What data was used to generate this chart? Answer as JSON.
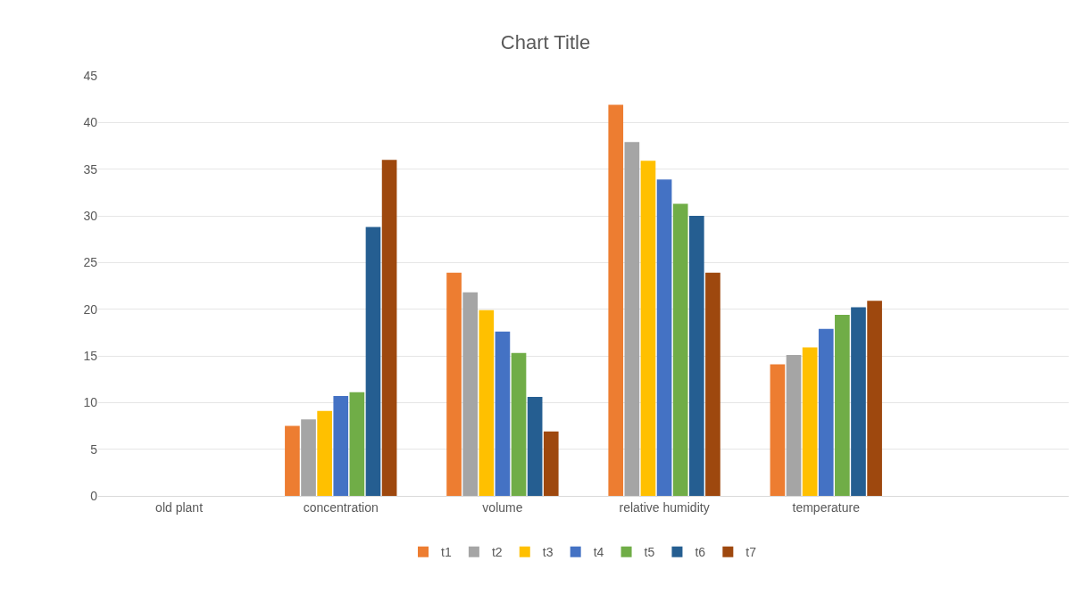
{
  "chart_data": {
    "type": "bar",
    "title": "Chart Title",
    "categories": [
      "old plant",
      "concentration",
      "volume",
      "relative humidity",
      "temperature",
      null
    ],
    "series": [
      {
        "name": "t1",
        "color": "#ed7d31",
        "values": [
          null,
          7.5,
          23.9,
          41.9,
          14.1,
          null
        ]
      },
      {
        "name": "t2",
        "color": "#a5a5a5",
        "values": [
          null,
          8.2,
          21.8,
          37.9,
          15.1,
          null
        ]
      },
      {
        "name": "t3",
        "color": "#ffc000",
        "values": [
          null,
          9.1,
          19.9,
          35.9,
          15.9,
          null
        ]
      },
      {
        "name": "t4",
        "color": "#4472c4",
        "values": [
          null,
          10.7,
          17.6,
          33.9,
          17.9,
          null
        ]
      },
      {
        "name": "t5",
        "color": "#70ad47",
        "values": [
          null,
          11.1,
          15.3,
          31.3,
          19.4,
          null
        ]
      },
      {
        "name": "t6",
        "color": "#255e91",
        "values": [
          null,
          28.8,
          10.6,
          30.0,
          20.2,
          null
        ]
      },
      {
        "name": "t7",
        "color": "#9e480e",
        "values": [
          null,
          36.0,
          6.9,
          23.9,
          20.9,
          null
        ]
      }
    ],
    "ylim": [
      0,
      45
    ],
    "yticks": [
      0,
      5,
      10,
      15,
      20,
      25,
      30,
      35,
      40,
      45
    ],
    "grid": "y",
    "legend": "bottom"
  }
}
